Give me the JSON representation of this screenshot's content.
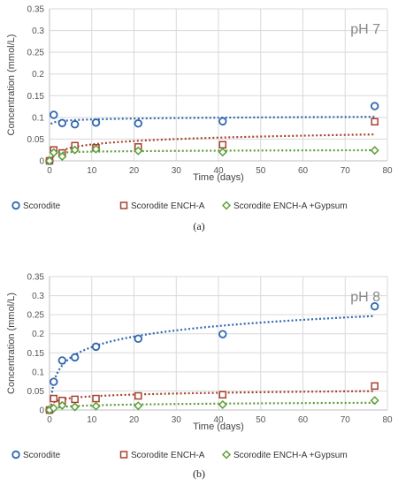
{
  "chart_data": [
    {
      "type": "scatter",
      "panel_label": "(a)",
      "annotation": "pH 7",
      "xlabel": "Time (days)",
      "ylabel": "Concentration (mmol/L)",
      "xlim": [
        0,
        80
      ],
      "ylim": [
        0,
        0.35
      ],
      "x_ticks": [
        "0",
        "10",
        "20",
        "30",
        "40",
        "50",
        "60",
        "70",
        "80"
      ],
      "y_ticks": [
        "0",
        "0.05",
        "0.1",
        "0.15",
        "0.2",
        "0.25",
        "0.3",
        "0.35"
      ],
      "grid": true,
      "legend_position": "bottom",
      "series": [
        {
          "name": "Scorodite",
          "color": "#2F67B1",
          "marker": "circle",
          "x": [
            0,
            1,
            3,
            6,
            11,
            21,
            41,
            77
          ],
          "y": [
            0.0,
            0.106,
            0.087,
            0.084,
            0.088,
            0.086,
            0.091,
            0.126
          ],
          "trend": "log"
        },
        {
          "name": "Scorodite ENCH-A",
          "color": "#A8412F",
          "marker": "square",
          "x": [
            0,
            1,
            3,
            6,
            11,
            21,
            41,
            77
          ],
          "y": [
            0.0,
            0.025,
            0.018,
            0.035,
            0.03,
            0.032,
            0.037,
            0.09
          ],
          "trend": "log"
        },
        {
          "name": "Scorodite ENCH-A +Gypsum",
          "color": "#5E9E3B",
          "marker": "diamond",
          "x": [
            0,
            1,
            3,
            6,
            11,
            21,
            41,
            77
          ],
          "y": [
            0.0,
            0.019,
            0.01,
            0.025,
            0.027,
            0.023,
            0.02,
            0.024
          ],
          "trend": "log"
        }
      ]
    },
    {
      "type": "scatter",
      "panel_label": "(b)",
      "annotation": "pH 8",
      "xlabel": "Time (days)",
      "ylabel": "Concentration (mmol/L)",
      "xlim": [
        0,
        80
      ],
      "ylim": [
        0,
        0.35
      ],
      "x_ticks": [
        "0",
        "10",
        "20",
        "30",
        "40",
        "50",
        "60",
        "70",
        "80"
      ],
      "y_ticks": [
        "0",
        "0.05",
        "0.1",
        "0.15",
        "0.2",
        "0.25",
        "0.3",
        "0.35"
      ],
      "grid": true,
      "legend_position": "bottom",
      "series": [
        {
          "name": "Scorodite",
          "color": "#2F67B1",
          "marker": "circle",
          "x": [
            0,
            1,
            3,
            6,
            11,
            21,
            41,
            77
          ],
          "y": [
            0.0,
            0.074,
            0.13,
            0.138,
            0.166,
            0.187,
            0.199,
            0.272
          ],
          "trend": "log"
        },
        {
          "name": "Scorodite ENCH-A",
          "color": "#A8412F",
          "marker": "square",
          "x": [
            0,
            1,
            3,
            6,
            11,
            21,
            41,
            77
          ],
          "y": [
            0.0,
            0.03,
            0.025,
            0.028,
            0.03,
            0.037,
            0.04,
            0.063
          ],
          "trend": "log"
        },
        {
          "name": "Scorodite ENCH-A +Gypsum",
          "color": "#5E9E3B",
          "marker": "diamond",
          "x": [
            0,
            1,
            3,
            6,
            11,
            21,
            41,
            77
          ],
          "y": [
            0.0,
            0.005,
            0.012,
            0.008,
            0.01,
            0.011,
            0.014,
            0.025
          ],
          "trend": "log"
        }
      ]
    }
  ]
}
